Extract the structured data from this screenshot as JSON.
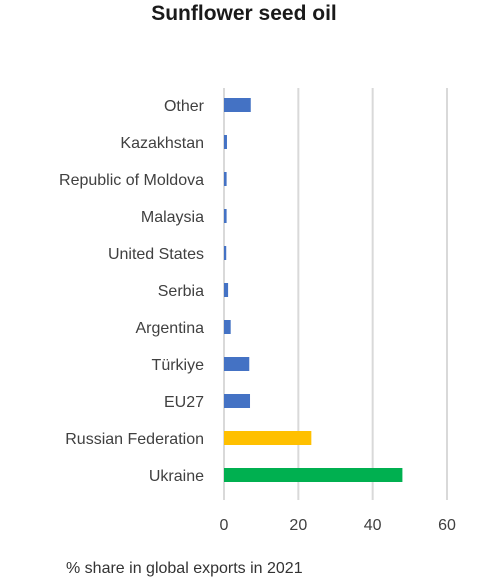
{
  "chart_data": {
    "type": "bar",
    "orientation": "horizontal",
    "title": "Sunflower seed oil",
    "xlabel": "% share in global exports in 2021",
    "ylabel": "",
    "categories": [
      "Other",
      "Kazakhstan",
      "Republic of Moldova",
      "Malaysia",
      "United States",
      "Serbia",
      "Argentina",
      "Türkiye",
      "EU27",
      "Russian Federation",
      "Ukraine"
    ],
    "values": [
      7.2,
      0.8,
      0.7,
      0.7,
      0.6,
      1.1,
      1.8,
      6.8,
      7.0,
      23.5,
      48.0
    ],
    "colors": [
      "#4472c4",
      "#4472c4",
      "#4472c4",
      "#4472c4",
      "#4472c4",
      "#4472c4",
      "#4472c4",
      "#4472c4",
      "#4472c4",
      "#ffc000",
      "#00b050"
    ],
    "xlim": [
      0,
      60
    ],
    "xticks": [
      0,
      20,
      40,
      60
    ],
    "grid": true,
    "grid_color": "#d9d9d9",
    "legend": "none"
  }
}
